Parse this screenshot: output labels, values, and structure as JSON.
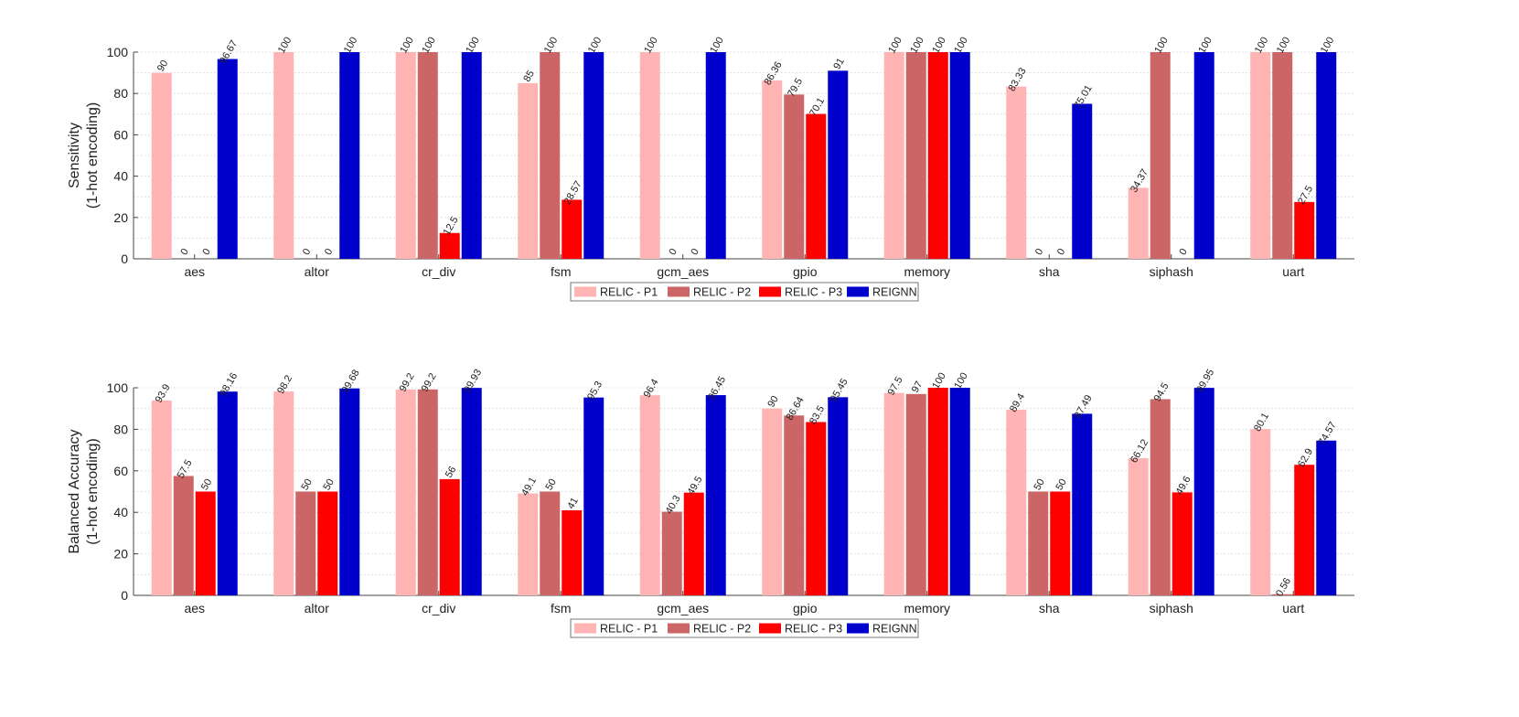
{
  "chart_data": [
    {
      "type": "bar",
      "ylabel_lines": [
        "Sensitivity",
        "(1-hot encoding)"
      ],
      "ylim": [
        0,
        100
      ],
      "yticks": [
        0,
        20,
        40,
        60,
        80,
        100
      ],
      "grid": true,
      "legend_position": "bottom-center",
      "categories": [
        "aes",
        "altor",
        "cr_div",
        "fsm",
        "gcm_aes",
        "gpio",
        "memory",
        "sha",
        "siphash",
        "uart"
      ],
      "series": [
        {
          "name": "RELIC - P1",
          "color": "#ffb3b3",
          "values": [
            90,
            100,
            100,
            85,
            100,
            86.36,
            100,
            83.33,
            34.37,
            100
          ],
          "labels": [
            "90",
            "100",
            "100",
            "85",
            "100",
            "86.36",
            "100",
            "83.33",
            "34.37",
            "100"
          ]
        },
        {
          "name": "RELIC - P2",
          "color": "#cc6666",
          "values": [
            0,
            0,
            100,
            100,
            0,
            79.5,
            100,
            0,
            100,
            100
          ],
          "labels": [
            "0",
            "0",
            "100",
            "100",
            "0",
            "79.5",
            "100",
            "0",
            "100",
            "100"
          ]
        },
        {
          "name": "RELIC - P3",
          "color": "#ff0000",
          "values": [
            0,
            0,
            12.5,
            28.57,
            0,
            70.1,
            100,
            0,
            0,
            27.5
          ],
          "labels": [
            "0",
            "0",
            "12.5",
            "28.57",
            "0",
            "70.1",
            "100",
            "0",
            "0",
            "27.5"
          ]
        },
        {
          "name": "REIGNN",
          "color": "#0000cc",
          "values": [
            96.67,
            100,
            100,
            100,
            100,
            91,
            100,
            75.01,
            100,
            100
          ],
          "labels": [
            "96.67",
            "100",
            "100",
            "100",
            "100",
            "91",
            "100",
            "75.01",
            "100",
            "100"
          ]
        }
      ]
    },
    {
      "type": "bar",
      "ylabel_lines": [
        "Balanced Accuracy",
        "(1-hot encoding)"
      ],
      "ylim": [
        0,
        100
      ],
      "yticks": [
        0,
        20,
        40,
        60,
        80,
        100
      ],
      "grid": true,
      "legend_position": "bottom-center",
      "categories": [
        "aes",
        "altor",
        "cr_div",
        "fsm",
        "gcm_aes",
        "gpio",
        "memory",
        "sha",
        "siphash",
        "uart"
      ],
      "series": [
        {
          "name": "RELIC - P1",
          "color": "#ffb3b3",
          "values": [
            93.9,
            98.2,
            99.2,
            49.1,
            96.4,
            90,
            97.5,
            89.4,
            66.12,
            80.1
          ],
          "labels": [
            "93.9",
            "98.2",
            "99.2",
            "49.1",
            "96.4",
            "90",
            "97.5",
            "89.4",
            "66.12",
            "80.1"
          ]
        },
        {
          "name": "RELIC - P2",
          "color": "#cc6666",
          "values": [
            57.5,
            50,
            99.2,
            50,
            40.3,
            86.64,
            97,
            50,
            94.5,
            0.56
          ],
          "labels": [
            "57.5",
            "50",
            "99.2",
            "50",
            "40.3",
            "86.64",
            "97",
            "50",
            "94.5",
            "0.56"
          ]
        },
        {
          "name": "RELIC - P3",
          "color": "#ff0000",
          "values": [
            50,
            50,
            56,
            41,
            49.5,
            83.5,
            100,
            50,
            49.6,
            62.9
          ],
          "labels": [
            "50",
            "50",
            "56",
            "41",
            "49.5",
            "83.5",
            "100",
            "50",
            "49.6",
            "62.9"
          ]
        },
        {
          "name": "REIGNN",
          "color": "#0000cc",
          "values": [
            98.16,
            99.68,
            99.93,
            95.3,
            96.45,
            95.45,
            100,
            87.49,
            99.95,
            74.57
          ],
          "labels": [
            "98.16",
            "99.68",
            "99.93",
            "95.3",
            "96.45",
            "95.45",
            "100",
            "87.49",
            "99.95",
            "74.57"
          ]
        }
      ]
    }
  ]
}
